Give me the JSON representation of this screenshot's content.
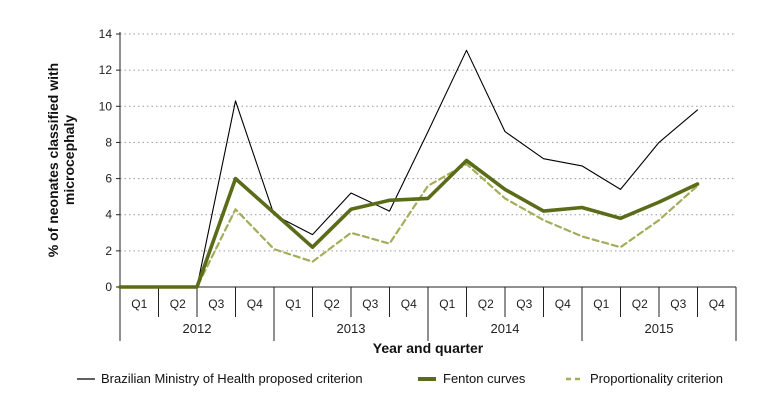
{
  "chart_data": {
    "type": "line",
    "title": "",
    "xlabel": "Year and quarter",
    "ylabel": "% of neonates classified with microcephaly",
    "ylabel_lines": [
      "% of neonates classified with",
      "microcephaly"
    ],
    "ylim": [
      0,
      14
    ],
    "yticks": [
      0,
      2,
      4,
      6,
      8,
      10,
      12,
      14
    ],
    "grid": "horizontal dotted",
    "legend_position": "bottom",
    "years": [
      "2012",
      "2013",
      "2014",
      "2015"
    ],
    "categories": [
      "Q1",
      "Q2",
      "Q3",
      "Q4",
      "Q1",
      "Q2",
      "Q3",
      "Q4",
      "Q1",
      "Q2",
      "Q3",
      "Q4",
      "Q1",
      "Q2",
      "Q3",
      "Q4"
    ],
    "series": [
      {
        "name": "Brazilian Ministry of Health proposed criterion",
        "color": "#000000",
        "style": "thin-solid",
        "values": [
          0,
          0,
          0,
          10.3,
          4.0,
          2.9,
          5.2,
          4.2,
          8.6,
          13.1,
          8.6,
          7.1,
          6.7,
          5.4,
          8.0,
          9.8
        ]
      },
      {
        "name": "Fenton curves",
        "color": "#5a6b1a",
        "style": "thick-solid",
        "values": [
          0,
          0,
          0,
          6.0,
          4.1,
          2.2,
          4.3,
          4.8,
          4.9,
          7.0,
          5.4,
          4.2,
          4.4,
          3.8,
          4.7,
          5.7
        ]
      },
      {
        "name": "Proportionality criterion",
        "color": "#a3ad5a",
        "style": "dashed",
        "values": [
          0,
          0,
          0,
          4.3,
          2.1,
          1.4,
          3.0,
          2.4,
          5.6,
          6.8,
          4.9,
          3.7,
          2.8,
          2.2,
          3.7,
          5.6
        ]
      }
    ]
  }
}
